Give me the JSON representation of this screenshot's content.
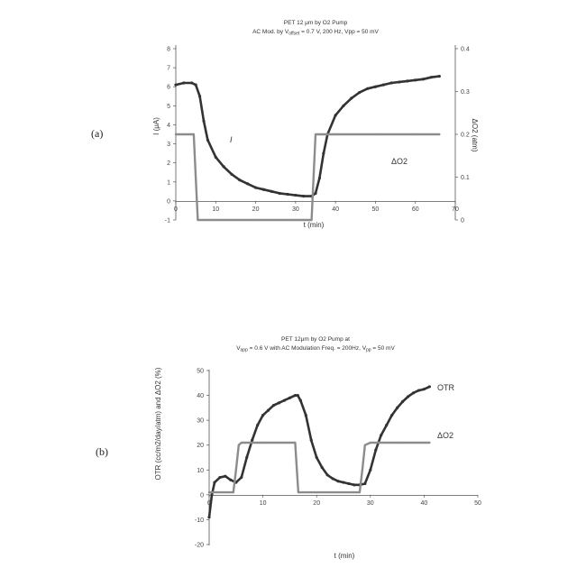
{
  "panels": [
    {
      "label": "(a)"
    },
    {
      "label": "(b)"
    }
  ],
  "colors": {
    "dark_series": "#333333",
    "grey_series": "#8c8c8c",
    "axis": "#555555"
  },
  "chart_data": [
    {
      "type": "line",
      "title_line1": "PET 12 μm by O2 Pump",
      "title_line2": "AC Mod. by V",
      "title_sub": "offset",
      "title_line2_rest": " = 0.7 V, 200 Hz, Vpp = 50 mV",
      "xlabel": "t (min)",
      "ylabel": "I (μA)",
      "ylabel_right": "ΔO2 (atm)",
      "xlim": [
        0,
        70
      ],
      "ylim": [
        -1,
        8
      ],
      "ylim_right": [
        0,
        0.4
      ],
      "x_ticks": [
        "0",
        "10",
        "20",
        "30",
        "40",
        "50",
        "60",
        "70"
      ],
      "y_ticks": [
        "-1",
        "0",
        "1",
        "2",
        "3",
        "4",
        "5",
        "6",
        "7",
        "8"
      ],
      "y_ticks_right": [
        "0",
        "0.1",
        "0.2",
        "0.3",
        "0.4"
      ],
      "grid": false,
      "annotations": [
        "I",
        "ΔO2"
      ],
      "series": [
        {
          "axis": "left",
          "color": "#333333",
          "x": [
            0,
            2,
            4,
            5,
            6,
            7,
            8,
            10,
            12,
            14,
            16,
            18,
            20,
            22,
            24,
            26,
            28,
            30,
            32,
            34,
            35,
            36,
            37,
            38,
            40,
            42,
            44,
            46,
            48,
            50,
            52,
            54,
            56,
            58,
            60,
            62,
            64,
            66
          ],
          "y": [
            6.1,
            6.2,
            6.2,
            6.1,
            5.5,
            4.2,
            3.2,
            2.3,
            1.8,
            1.4,
            1.1,
            0.9,
            0.7,
            0.6,
            0.5,
            0.4,
            0.35,
            0.3,
            0.25,
            0.25,
            0.4,
            1.2,
            2.5,
            3.5,
            4.5,
            5.0,
            5.4,
            5.7,
            5.9,
            6.0,
            6.1,
            6.2,
            6.25,
            6.3,
            6.35,
            6.4,
            6.5,
            6.55
          ]
        },
        {
          "axis": "right",
          "color": "#8c8c8c",
          "x": [
            0,
            4,
            4.5,
            5,
            5.5,
            10,
            20,
            30,
            34,
            34.5,
            35,
            36,
            40,
            50,
            60,
            66
          ],
          "y": [
            0.2,
            0.2,
            0.2,
            0.1,
            0.0,
            0.0,
            0.0,
            0.0,
            0.0,
            0.1,
            0.2,
            0.2,
            0.2,
            0.2,
            0.2,
            0.2
          ]
        }
      ]
    },
    {
      "type": "line",
      "title_line1": "PET 12μm by O2 Pump at",
      "title_l2_a": "V",
      "title_l2_sub1": "app",
      "title_l2_b": " = 0.6 V with AC Modulation  Freq. = 200Hz,  V",
      "title_l2_sub2": "pp",
      "title_l2_c": " = 50 mV",
      "xlabel": "t (min)",
      "ylabel": "OTR (cc/m2/day/atm) and ΔO2 (%)",
      "xlim": [
        0,
        50
      ],
      "ylim": [
        -20,
        50
      ],
      "x_ticks": [
        "0",
        "10",
        "20",
        "30",
        "40",
        "50"
      ],
      "y_ticks": [
        "-20",
        "-10",
        "0",
        "10",
        "20",
        "30",
        "40",
        "50"
      ],
      "grid": false,
      "series": [
        {
          "name": "OTR",
          "color": "#333333",
          "x": [
            0,
            0.5,
            1,
            2,
            3,
            4,
            5,
            6,
            7,
            8,
            9,
            10,
            11,
            12,
            13,
            14,
            15,
            16,
            16.5,
            17,
            18,
            19,
            20,
            21,
            22,
            23,
            24,
            25,
            26,
            27,
            28,
            29,
            30,
            31,
            32,
            33,
            34,
            35,
            36,
            37,
            38,
            39,
            40,
            41
          ],
          "y": [
            -9,
            0,
            5,
            7,
            7.5,
            6,
            5,
            7,
            15,
            22,
            28,
            32,
            34,
            36,
            37,
            38,
            39,
            40,
            40,
            38,
            32,
            22,
            15,
            11,
            8,
            6.5,
            5.5,
            5,
            4.5,
            4,
            4,
            4.5,
            10,
            18,
            24,
            28,
            32,
            35,
            37.5,
            39.5,
            41,
            42,
            42.5,
            43.5
          ]
        },
        {
          "name": "ΔO2",
          "color": "#8c8c8c",
          "x": [
            0,
            4.5,
            5,
            5.5,
            6,
            10,
            16,
            16.3,
            16.6,
            17,
            20,
            28,
            28.5,
            29,
            30,
            35,
            41
          ],
          "y": [
            1,
            1,
            10,
            20,
            21,
            21,
            21,
            11,
            1,
            1,
            1,
            1,
            10,
            20,
            21,
            21,
            21
          ]
        }
      ]
    }
  ]
}
